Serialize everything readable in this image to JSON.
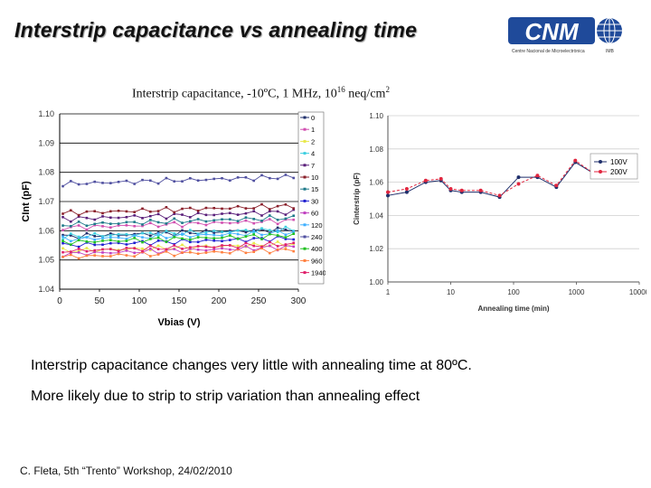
{
  "slide": {
    "title": "Interstrip capacitance vs annealing time",
    "chart_header": {
      "prefix": "Interstrip capacitance, -10ºC, 1 MHz, 10",
      "sup1": "16",
      "mid": " neq/cm",
      "sup2": "2"
    },
    "notes": [
      "Interstrip capacitance changes very little with annealing time at 80ºC.",
      "More likely due to strip to strip variation than annealing effect"
    ],
    "footer": "C. Fleta, 5th “Trento” Workshop, 24/02/2010",
    "logo": {
      "text": "CNM",
      "caption": "Centre Nacional de Microelectrònica",
      "imb": "IMB"
    }
  },
  "colors": {
    "title": "#111111",
    "logo_blue": "#1f4a9a",
    "series_100V": "#1f2f6b",
    "series_200V": "#e0263f"
  },
  "chart_data": [
    {
      "type": "line",
      "ylabel": "CInt (pF)",
      "xlabel": "Vbias (V)",
      "xlim": [
        0,
        300
      ],
      "ylim": [
        1.04,
        1.1
      ],
      "xticks": [
        0,
        50,
        100,
        150,
        200,
        250,
        300
      ],
      "yticks": [
        1.04,
        1.05,
        1.06,
        1.07,
        1.08,
        1.09,
        1.1
      ],
      "ytick_labels": [
        "1.04",
        "1.05",
        "1.06",
        "1.07",
        "1.08",
        "1.09",
        "1.10"
      ],
      "grid": "horizontal",
      "legend": "right",
      "series": [
        {
          "name": "0",
          "color": "#1f2f6b",
          "level": 1.058
        },
        {
          "name": "1",
          "color": "#d14fb0",
          "level": 1.061
        },
        {
          "name": "2",
          "color": "#e8e84a",
          "level": 1.053
        },
        {
          "name": "4",
          "color": "#3fcfe0",
          "level": 1.058
        },
        {
          "name": "7",
          "color": "#5a1f7a",
          "level": 1.064
        },
        {
          "name": "10",
          "color": "#8a1f2a",
          "level": 1.066
        },
        {
          "name": "15",
          "color": "#1f7a8a",
          "level": 1.062
        },
        {
          "name": "30",
          "color": "#2020d0",
          "level": 1.055
        },
        {
          "name": "60",
          "color": "#c040c0",
          "level": 1.052
        },
        {
          "name": "120",
          "color": "#40b0ff",
          "level": 1.057
        },
        {
          "name": "240",
          "color": "#5050a0",
          "level": 1.076
        },
        {
          "name": "400",
          "color": "#20c020",
          "level": 1.056
        },
        {
          "name": "960",
          "color": "#ff8040",
          "level": 1.051
        },
        {
          "name": "1940",
          "color": "#e0206a",
          "level": 1.053
        }
      ]
    },
    {
      "type": "line",
      "ylabel": "Cinterstrip (pF)",
      "xlabel": "Annealing time (min)",
      "xscale": "log",
      "xlim": [
        1,
        10000
      ],
      "ylim": [
        1.0,
        1.1
      ],
      "xticks": [
        1,
        10,
        100,
        1000,
        10000
      ],
      "xtick_labels": [
        "1",
        "10",
        "100",
        "1000",
        "10000"
      ],
      "yticks": [
        1.0,
        1.02,
        1.04,
        1.06,
        1.08,
        1.1
      ],
      "ytick_labels": [
        "1.00",
        "1.02",
        "1.04",
        "1.06",
        "1.08",
        "1.10"
      ],
      "grid": "horizontal",
      "legend": "top-right",
      "x": [
        1,
        2,
        4,
        7,
        10,
        15,
        30,
        60,
        120,
        240,
        480,
        960,
        1940
      ],
      "series": [
        {
          "name": "100V",
          "color": "#1f2f6b",
          "values": [
            1.052,
            1.054,
            1.06,
            1.061,
            1.055,
            1.054,
            1.054,
            1.051,
            1.063,
            1.063,
            1.057,
            1.072,
            1.065
          ]
        },
        {
          "name": "200V",
          "color": "#e0263f",
          "values": [
            1.054,
            1.056,
            1.061,
            1.062,
            1.056,
            1.055,
            1.055,
            1.052,
            1.059,
            1.064,
            1.058,
            1.073,
            1.065
          ]
        }
      ]
    }
  ]
}
